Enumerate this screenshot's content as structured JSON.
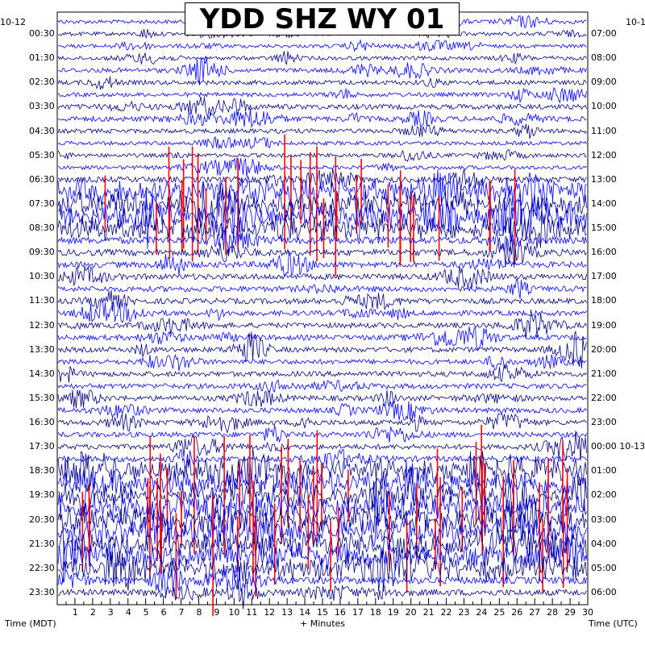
{
  "chart_data": {
    "type": "helicorder",
    "title": "YDD SHZ WY 01",
    "date_left": "10-12",
    "date_right_top": "10-1",
    "xlabel": "+ Minutes",
    "left_axis_label": "Time (MDT)",
    "right_axis_label": "Time (UTC)",
    "x_range": [
      0,
      30
    ],
    "x_ticks": [
      "1",
      "2",
      "3",
      "4",
      "5",
      "6",
      "7",
      "8",
      "9",
      "10",
      "11",
      "12",
      "13",
      "14",
      "15",
      "16",
      "17",
      "18",
      "19",
      "20",
      "21",
      "22",
      "23",
      "24",
      "25",
      "26",
      "27",
      "28",
      "29",
      "30"
    ],
    "left_time_labels": [
      "00:30",
      "01:30",
      "02:30",
      "03:30",
      "04:30",
      "05:30",
      "06:30",
      "07:30",
      "08:30",
      "09:30",
      "10:30",
      "11:30",
      "12:30",
      "13:30",
      "14:30",
      "15:30",
      "16:30",
      "17:30",
      "18:30",
      "19:30",
      "20:30",
      "21:30",
      "22:30",
      "23:30"
    ],
    "right_time_labels": [
      "07:00",
      "08:00",
      "09:00",
      "10:00",
      "11:00",
      "12:00",
      "13:00",
      "14:00",
      "15:00",
      "16:00",
      "17:00",
      "18:00",
      "19:00",
      "20:00",
      "21:00",
      "22:00",
      "23:00",
      "00:00 10-13",
      "01:00",
      "02:00",
      "03:00",
      "04:00",
      "05:00",
      "06:00"
    ],
    "trace_count": 48,
    "trace_colors": [
      "#0000ff",
      "#000080"
    ],
    "clip_color": "#ff0000",
    "grid": true,
    "activity_level": [
      0.3,
      0.3,
      0.25,
      0.3,
      0.4,
      0.4,
      0.35,
      0.5,
      0.5,
      0.4,
      0.3,
      0.3,
      0.3,
      0.6,
      1.0,
      1.0,
      1.0,
      1.0,
      0.8,
      0.7,
      0.6,
      0.6,
      0.55,
      0.55,
      0.5,
      0.5,
      0.5,
      0.5,
      0.45,
      0.5,
      0.5,
      0.5,
      0.5,
      0.5,
      0.5,
      0.5,
      0.6,
      0.9,
      1.0,
      1.0,
      1.0,
      1.0,
      1.0,
      1.0,
      1.0,
      0.9,
      0.8,
      0.7
    ]
  }
}
